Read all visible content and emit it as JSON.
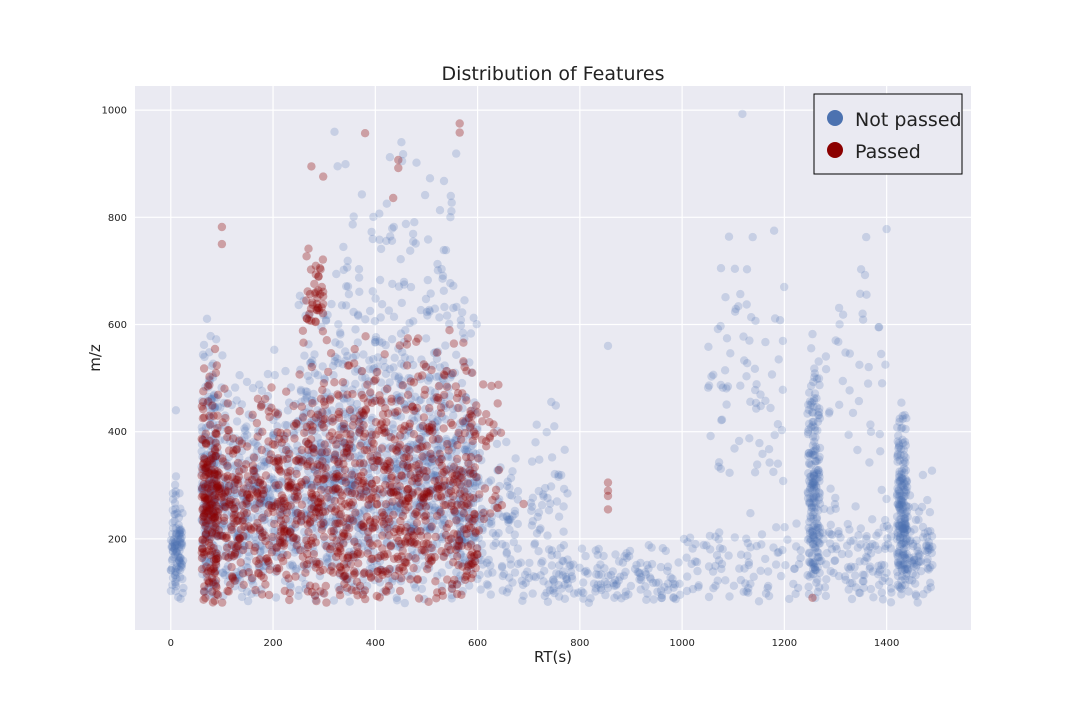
{
  "chart_data": {
    "type": "scatter",
    "title": "Distribution of Features",
    "xlabel": "RT(s)",
    "ylabel": "m/z",
    "xlim": [
      -70,
      1565
    ],
    "ylim": [
      30,
      1045
    ],
    "xticks": [
      0,
      200,
      400,
      600,
      800,
      1000,
      1200,
      1400
    ],
    "yticks": [
      200,
      400,
      600,
      800,
      1000
    ],
    "grid": true,
    "legend_position": "top-right",
    "series": [
      {
        "name": "Not passed",
        "color": "#4c72b0",
        "opacity": 0.22,
        "clusters": [
          {
            "x": [
              0,
              25
            ],
            "y": [
              80,
              330
            ],
            "n": 110
          },
          {
            "x": [
              60,
              90
            ],
            "y": [
              80,
              620
            ],
            "n": 220
          },
          {
            "x": [
              90,
              250
            ],
            "y": [
              80,
              560
            ],
            "n": 420
          },
          {
            "x": [
              250,
              600
            ],
            "y": [
              80,
              720
            ],
            "n": 1100
          },
          {
            "x": [
              320,
              560
            ],
            "y": [
              600,
              990
            ],
            "n": 70
          },
          {
            "x": [
              560,
              680
            ],
            "y": [
              80,
              450
            ],
            "n": 140
          },
          {
            "x": [
              680,
              1000
            ],
            "y": [
              80,
              200
            ],
            "n": 170
          },
          {
            "x": [
              700,
              780
            ],
            "y": [
              120,
              520
            ],
            "n": 45
          },
          {
            "x": [
              1000,
              1250
            ],
            "y": [
              80,
              260
            ],
            "n": 90
          },
          {
            "x": [
              1050,
              1200
            ],
            "y": [
              300,
              780
            ],
            "n": 70
          },
          {
            "x": [
              1245,
              1270
            ],
            "y": [
              80,
              580
            ],
            "n": 210
          },
          {
            "x": [
              1270,
              1410
            ],
            "y": [
              80,
              300
            ],
            "n": 110
          },
          {
            "x": [
              1280,
              1400
            ],
            "y": [
              320,
              780
            ],
            "n": 35
          },
          {
            "x": [
              1420,
              1440
            ],
            "y": [
              80,
              500
            ],
            "n": 200
          },
          {
            "x": [
              1440,
              1490
            ],
            "y": [
              80,
              330
            ],
            "n": 80
          }
        ],
        "points": [
          [
            1118,
            993
          ],
          [
            1400,
            778
          ],
          [
            1180,
            775
          ],
          [
            1138,
            763
          ],
          [
            1360,
            763
          ],
          [
            1127,
            703
          ],
          [
            1350,
            703
          ],
          [
            1076,
            705
          ],
          [
            1105,
            629
          ],
          [
            1307,
            631
          ],
          [
            855,
            560
          ],
          [
            1255,
            582
          ],
          [
            10,
            440
          ],
          [
            750,
            410
          ]
        ]
      },
      {
        "name": "Passed",
        "color": "#8b0000",
        "opacity": 0.32,
        "clusters": [
          {
            "x": [
              60,
              95
            ],
            "y": [
              80,
              560
            ],
            "n": 200
          },
          {
            "x": [
              95,
              250
            ],
            "y": [
              80,
              520
            ],
            "n": 300
          },
          {
            "x": [
              250,
              600
            ],
            "y": [
              80,
              620
            ],
            "n": 820
          },
          {
            "x": [
              265,
              300
            ],
            "y": [
              600,
              760
            ],
            "n": 40
          },
          {
            "x": [
              600,
              650
            ],
            "y": [
              180,
              600
            ],
            "n": 30
          }
        ],
        "points": [
          [
            380,
            957
          ],
          [
            275,
            895
          ],
          [
            298,
            876
          ],
          [
            445,
            907
          ],
          [
            445,
            892
          ],
          [
            565,
            975
          ],
          [
            565,
            958
          ],
          [
            435,
            836
          ],
          [
            100,
            782
          ],
          [
            100,
            750
          ],
          [
            855,
            305
          ],
          [
            855,
            290
          ],
          [
            855,
            280
          ],
          [
            855,
            255
          ],
          [
            1255,
            90
          ],
          [
            690,
            265
          ],
          [
            285,
            628
          ]
        ]
      }
    ]
  }
}
